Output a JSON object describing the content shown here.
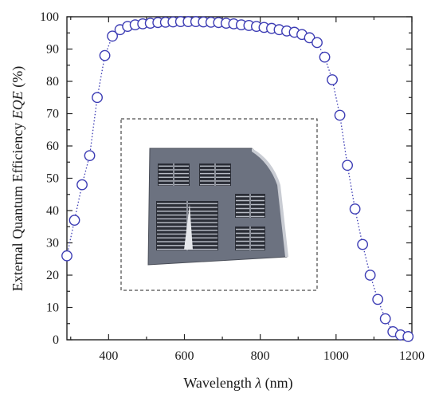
{
  "chart_data": {
    "type": "scatter",
    "xlabel_parts": [
      "Wavelength ",
      "λ",
      " (nm)"
    ],
    "ylabel_parts": [
      "External Quantum Efficiency ",
      "EQE",
      " (%)"
    ],
    "xlim": [
      290,
      1200
    ],
    "ylim": [
      0,
      100
    ],
    "x_ticks": [
      400,
      600,
      800,
      1000,
      1200
    ],
    "y_ticks": [
      0,
      10,
      20,
      30,
      40,
      50,
      60,
      70,
      80,
      90,
      100
    ],
    "grid": false,
    "marker": "open-circle",
    "line_style": "dotted",
    "color": "#3c3cb4",
    "inset": "photograph of solar cell device with grid contacts",
    "series": [
      {
        "x": [
          290,
          310,
          330,
          350,
          370,
          390,
          410,
          430,
          450,
          470,
          490,
          510,
          530,
          550,
          570,
          590,
          610,
          630,
          650,
          670,
          690,
          710,
          730,
          750,
          770,
          790,
          810,
          830,
          850,
          870,
          890,
          910,
          930,
          950,
          970,
          990,
          1010,
          1030,
          1050,
          1070,
          1090,
          1110,
          1130,
          1150,
          1170,
          1190
        ],
        "y": [
          26,
          37,
          48,
          57,
          75,
          88,
          94,
          96,
          97,
          97.5,
          97.8,
          98,
          98.2,
          98.3,
          98.4,
          98.5,
          98.5,
          98.5,
          98.4,
          98.3,
          98.2,
          98,
          97.8,
          97.5,
          97.3,
          97,
          96.7,
          96.4,
          96,
          95.6,
          95.2,
          94.5,
          93.5,
          92,
          87.5,
          80.5,
          69.5,
          54,
          40.5,
          29.5,
          20,
          12.5,
          6.5,
          2.5,
          1.5,
          1
        ]
      }
    ]
  }
}
